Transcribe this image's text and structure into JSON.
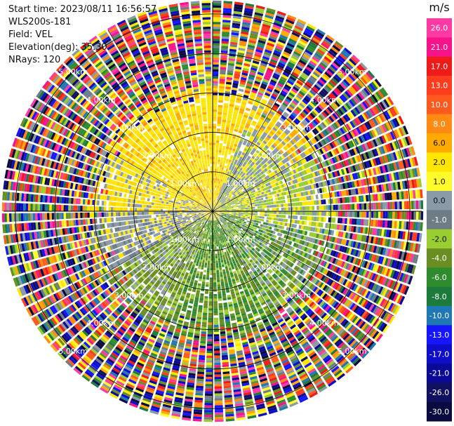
{
  "info": {
    "start_time": "Start time: 2023/08/11 16:56:57",
    "instrument": "WLS200s-181",
    "field": "Field: VEL",
    "elevation": "Elevation(deg): 35.30",
    "nrays": "NRays: 120"
  },
  "colorbar": {
    "unit": "m/s",
    "ticks": [
      "26.0",
      "21.0",
      "17.0",
      "13.0",
      "10.0",
      "8.0",
      "6.0",
      "2.0",
      "1.0",
      "0.0",
      "-1.0",
      "-2.0",
      "-4.0",
      "-6.0",
      "-8.0",
      "-10.0",
      "-13.0",
      "-17.0",
      "-21.0",
      "-26.0",
      "-30.0"
    ],
    "colors": [
      "#ff3aa3",
      "#f8138c",
      "#ef1a1a",
      "#ff3d1e",
      "#ff5a1e",
      "#ff8a14",
      "#ffaa00",
      "#ffe600",
      "#fffa2c",
      "#8a9aa6",
      "#6e7c86",
      "#9acd32",
      "#6b8e23",
      "#2e8b2e",
      "#1c7a3c",
      "#1f77b4",
      "#1515ff",
      "#0e0ec8",
      "#0a0a96",
      "#101060",
      "#0a0a40"
    ]
  },
  "chart_data": {
    "type": "polar_ppi",
    "field": "VEL",
    "units": "m/s",
    "nrays": 120,
    "range_rings_km": [
      1,
      2,
      3,
      4,
      5
    ],
    "range_labels": [
      "1.00km",
      "2.00km",
      "3.00km",
      "4.00km",
      "5.00km"
    ],
    "vmin": -30.0,
    "vmax": 26.0,
    "sectors": [
      {
        "az_from": 0,
        "az_to": 90,
        "near_field": "yellow 2.0–6.0 m/s"
      },
      {
        "az_from": 90,
        "az_to": 140,
        "near_field": "grey/green ~0 to -2 m/s"
      },
      {
        "az_from": 140,
        "az_to": 220,
        "near_field": "green -2 to -6 m/s"
      },
      {
        "az_from": 220,
        "az_to": 360,
        "near_field": "yellow/grey 0 to 2 m/s"
      }
    ]
  }
}
